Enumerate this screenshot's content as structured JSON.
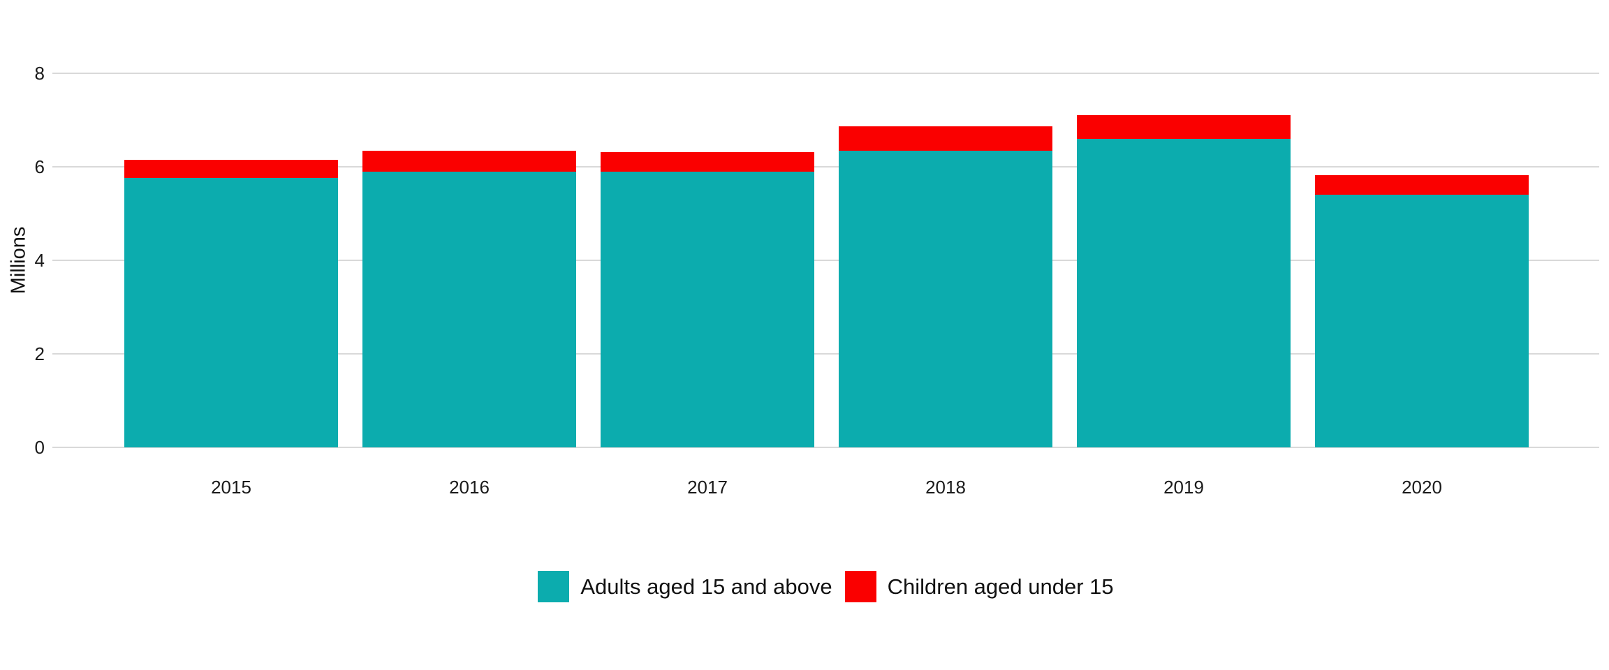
{
  "chart_data": {
    "type": "bar",
    "stacked": true,
    "categories": [
      "2015",
      "2016",
      "2017",
      "2018",
      "2019",
      "2020"
    ],
    "series": [
      {
        "name": "Adults aged 15 and above",
        "color": "#0CACAE",
        "values": [
          5.76,
          5.9,
          5.9,
          6.34,
          6.59,
          5.4
        ]
      },
      {
        "name": "Children aged under 15",
        "color": "#FA0000",
        "values": [
          0.39,
          0.45,
          0.42,
          0.52,
          0.51,
          0.42
        ]
      }
    ],
    "stack_totals": [
      6.15,
      6.35,
      6.32,
      6.86,
      7.1,
      5.82
    ],
    "title": "",
    "xlabel": "",
    "ylabel": "Millions",
    "ylim": [
      0,
      8
    ],
    "yticks": [
      0,
      2,
      4,
      6,
      8
    ],
    "grid": "horizontal",
    "gridline_color": "#d9d9d9",
    "legend_position": "bottom"
  }
}
